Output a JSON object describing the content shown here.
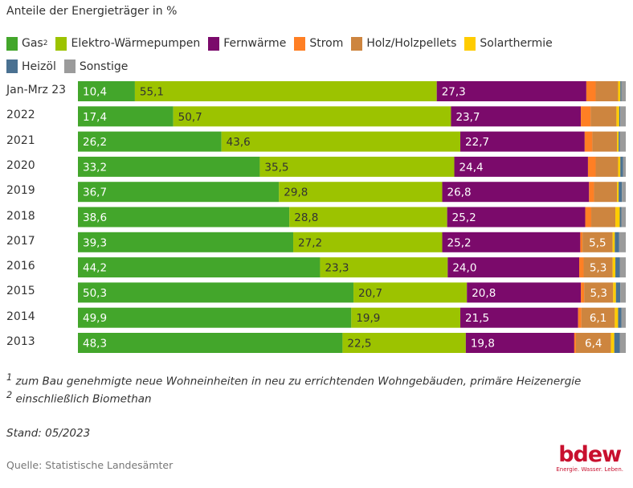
{
  "chart_data": {
    "type": "bar",
    "orientation": "horizontal",
    "stacked": true,
    "title": "Anteile der Energieträger in %",
    "legend_position": "top",
    "grid": false,
    "xlim": [
      0,
      100
    ],
    "categories": [
      "Jan-Mrz 23",
      "2022",
      "2021",
      "2020",
      "2019",
      "2018",
      "2017",
      "2016",
      "2015",
      "2014",
      "2013"
    ],
    "series": [
      {
        "name": "Gas",
        "sup": "2",
        "color": "#43a62b",
        "values": [
          10.4,
          17.4,
          26.2,
          33.2,
          36.7,
          38.6,
          39.3,
          44.2,
          50.3,
          49.9,
          48.3
        ],
        "labels": [
          "10,4",
          "17,4",
          "26,2",
          "33,2",
          "36,7",
          "38,6",
          "39,3",
          "44,2",
          "50,3",
          "49,9",
          "48,3"
        ],
        "label_color": "#ffffff"
      },
      {
        "name": "Elektro-Wärmepumpen",
        "color": "#9cc300",
        "values": [
          55.1,
          50.7,
          43.6,
          35.5,
          29.8,
          28.8,
          27.2,
          23.3,
          20.7,
          19.9,
          22.5
        ],
        "labels": [
          "55,1",
          "50,7",
          "43,6",
          "35,5",
          "29,8",
          "28,8",
          "27,2",
          "23,3",
          "20,7",
          "19,9",
          "22,5"
        ],
        "label_color": "#333333"
      },
      {
        "name": "Fernwärme",
        "color": "#7b0a6b",
        "values": [
          27.3,
          23.7,
          22.7,
          24.4,
          26.8,
          25.2,
          25.2,
          24.0,
          20.8,
          21.5,
          19.8
        ],
        "labels": [
          "27,3",
          "23,7",
          "22,7",
          "24,4",
          "26,8",
          "25,2",
          "25,2",
          "24,0",
          "20,8",
          "21,5",
          "19,8"
        ],
        "label_color": "#ffffff"
      },
      {
        "name": "Strom",
        "color": "#ff7f24",
        "values": [
          1.7,
          1.8,
          1.4,
          1.4,
          0.9,
          1.1,
          0.4,
          0.8,
          0.6,
          0.6,
          0.3
        ],
        "labels": [
          null,
          null,
          null,
          null,
          null,
          null,
          null,
          null,
          null,
          null,
          null
        ],
        "label_color": "#ffffff"
      },
      {
        "name": "Holz/Holzpellets",
        "color": "#cd853f",
        "values": [
          4.1,
          4.7,
          4.5,
          4.1,
          4.2,
          4.4,
          5.5,
          5.3,
          5.3,
          6.1,
          6.4
        ],
        "labels": [
          null,
          null,
          null,
          null,
          null,
          null,
          "5,5",
          "5,3",
          "5,3",
          "6,1",
          "6,4"
        ],
        "label_color": "#ffffff"
      },
      {
        "name": "Solarthermie",
        "color": "#ffcc00",
        "values": [
          0.4,
          0.5,
          0.3,
          0.4,
          0.3,
          0.8,
          0.4,
          0.5,
          0.5,
          0.6,
          0.6
        ],
        "labels": [
          null,
          null,
          null,
          null,
          null,
          null,
          null,
          null,
          null,
          null,
          null
        ],
        "label_color": "#333333"
      },
      {
        "name": "Heizöl",
        "color": "#4a7191",
        "values": [
          0.2,
          0.2,
          0.2,
          0.5,
          0.6,
          0.3,
          0.8,
          0.8,
          0.8,
          0.6,
          1.0
        ],
        "labels": [
          null,
          null,
          null,
          null,
          null,
          null,
          null,
          null,
          null,
          null,
          null
        ],
        "label_color": "#ffffff"
      },
      {
        "name": "Sonstige",
        "color": "#9b9b9b",
        "values": [
          0.8,
          1.0,
          1.1,
          0.5,
          0.7,
          0.8,
          1.2,
          1.1,
          1.0,
          0.8,
          1.1
        ],
        "labels": [
          null,
          null,
          null,
          null,
          null,
          null,
          null,
          null,
          null,
          null,
          null
        ],
        "label_color": "#ffffff"
      }
    ]
  },
  "footnotes": [
    {
      "sup": "1",
      "text": " zum Bau genehmigte neue Wohneinheiten in neu zu errichtenden Wohngebäuden, primäre Heizenergie"
    },
    {
      "sup": "2",
      "text": " einschließlich Biomethan"
    }
  ],
  "stand": "Stand: 05/2023",
  "source": "Quelle: Statistische Landesämter",
  "logo": {
    "name": "bdew",
    "tagline": "Energie. Wasser. Leben."
  }
}
